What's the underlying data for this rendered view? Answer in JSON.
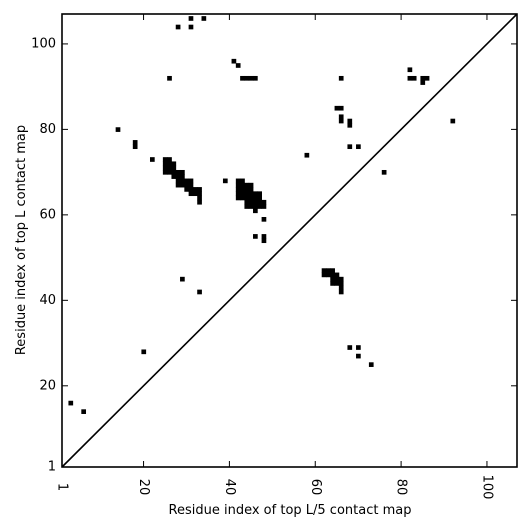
{
  "chart_data": {
    "type": "scatter",
    "xlabel": "Residue index of top L/5 contact map",
    "ylabel": "Residue index of top L contact map",
    "xlim": [
      1,
      107
    ],
    "ylim": [
      1,
      107
    ],
    "x_ticks": [
      1,
      20,
      40,
      60,
      80,
      100
    ],
    "y_ticks": [
      1,
      20,
      40,
      60,
      80,
      100
    ],
    "x_tick_labels": [
      "1",
      "20",
      "40",
      "60",
      "80",
      "100"
    ],
    "y_tick_labels": [
      "1",
      "20",
      "40",
      "60",
      "80",
      "100"
    ],
    "diagonal": true,
    "grid": false,
    "marker": "square",
    "color": "#000000",
    "series": [
      {
        "points": [
          [
            31,
            106
          ],
          [
            34,
            106
          ],
          [
            28,
            104
          ],
          [
            31,
            104
          ],
          [
            41,
            96
          ],
          [
            42,
            95
          ],
          [
            26,
            92
          ],
          [
            43,
            92
          ],
          [
            44,
            92
          ],
          [
            45,
            92
          ],
          [
            46,
            92
          ],
          [
            66,
            92
          ],
          [
            82,
            94
          ],
          [
            82,
            92
          ],
          [
            83,
            92
          ],
          [
            85,
            92
          ],
          [
            86,
            92
          ],
          [
            85,
            91
          ],
          [
            65,
            85
          ],
          [
            66,
            85
          ],
          [
            66,
            83
          ],
          [
            66,
            82
          ],
          [
            68,
            82
          ],
          [
            68,
            81
          ],
          [
            14,
            80
          ],
          [
            92,
            82
          ],
          [
            18,
            77
          ],
          [
            18,
            76
          ],
          [
            68,
            76
          ],
          [
            70,
            76
          ],
          [
            58,
            74
          ],
          [
            22,
            73
          ],
          [
            76,
            70
          ],
          [
            25,
            73
          ],
          [
            26,
            73
          ],
          [
            25,
            72
          ],
          [
            26,
            72
          ],
          [
            27,
            72
          ],
          [
            25,
            71
          ],
          [
            26,
            71
          ],
          [
            27,
            71
          ],
          [
            25,
            70
          ],
          [
            26,
            70
          ],
          [
            27,
            70
          ],
          [
            28,
            70
          ],
          [
            29,
            70
          ],
          [
            27,
            69
          ],
          [
            28,
            69
          ],
          [
            29,
            69
          ],
          [
            28,
            68
          ],
          [
            29,
            68
          ],
          [
            30,
            68
          ],
          [
            31,
            68
          ],
          [
            28,
            67
          ],
          [
            29,
            67
          ],
          [
            30,
            67
          ],
          [
            31,
            67
          ],
          [
            30,
            66
          ],
          [
            31,
            66
          ],
          [
            32,
            66
          ],
          [
            33,
            66
          ],
          [
            31,
            65
          ],
          [
            32,
            65
          ],
          [
            33,
            65
          ],
          [
            33,
            64
          ],
          [
            33,
            63
          ],
          [
            39,
            68
          ],
          [
            42,
            68
          ],
          [
            43,
            68
          ],
          [
            42,
            67
          ],
          [
            43,
            67
          ],
          [
            44,
            67
          ],
          [
            45,
            67
          ],
          [
            42,
            66
          ],
          [
            43,
            66
          ],
          [
            44,
            66
          ],
          [
            45,
            66
          ],
          [
            42,
            65
          ],
          [
            43,
            65
          ],
          [
            44,
            65
          ],
          [
            45,
            65
          ],
          [
            46,
            65
          ],
          [
            47,
            65
          ],
          [
            42,
            64
          ],
          [
            43,
            64
          ],
          [
            44,
            64
          ],
          [
            45,
            64
          ],
          [
            46,
            64
          ],
          [
            47,
            64
          ],
          [
            44,
            63
          ],
          [
            45,
            63
          ],
          [
            46,
            63
          ],
          [
            47,
            63
          ],
          [
            48,
            63
          ],
          [
            44,
            62
          ],
          [
            45,
            62
          ],
          [
            46,
            62
          ],
          [
            47,
            62
          ],
          [
            48,
            62
          ],
          [
            46,
            61
          ],
          [
            48,
            59
          ],
          [
            46,
            55
          ],
          [
            48,
            55
          ],
          [
            48,
            54
          ],
          [
            29,
            45
          ],
          [
            33,
            42
          ],
          [
            62,
            47
          ],
          [
            63,
            47
          ],
          [
            64,
            47
          ],
          [
            62,
            46
          ],
          [
            63,
            46
          ],
          [
            64,
            46
          ],
          [
            65,
            46
          ],
          [
            64,
            45
          ],
          [
            65,
            45
          ],
          [
            66,
            45
          ],
          [
            64,
            44
          ],
          [
            65,
            44
          ],
          [
            66,
            44
          ],
          [
            66,
            43
          ],
          [
            66,
            42
          ],
          [
            68,
            29
          ],
          [
            70,
            29
          ],
          [
            70,
            27
          ],
          [
            73,
            25
          ],
          [
            20,
            28
          ],
          [
            3,
            16
          ],
          [
            6,
            14
          ]
        ]
      }
    ]
  }
}
